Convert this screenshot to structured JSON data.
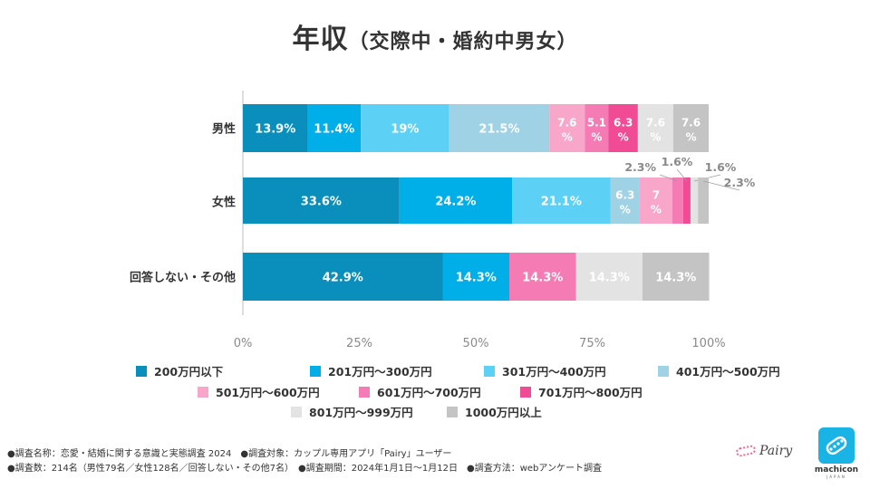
{
  "title": {
    "main": "年収",
    "sub": "（交際中・婚約中男女）"
  },
  "chart_data": {
    "type": "bar",
    "orientation": "horizontal",
    "stacked": true,
    "percent": true,
    "title": "年収（交際中・婚約中男女）",
    "categories": [
      "男性",
      "女性",
      "回答しない・その他"
    ],
    "xlim": [
      0,
      100
    ],
    "xticks": [
      "0%",
      "25%",
      "50%",
      "75%",
      "100%"
    ],
    "series": [
      {
        "name": "200万円以下",
        "color": "#0a8fbd",
        "values": [
          13.9,
          33.6,
          42.9
        ],
        "labels": [
          "13.9%",
          "33.6%",
          "42.9%"
        ]
      },
      {
        "name": "201万円～300万円",
        "color": "#00aee8",
        "values": [
          11.4,
          24.2,
          14.3
        ],
        "labels": [
          "11.4%",
          "24.2%",
          "14.3%"
        ]
      },
      {
        "name": "301万円～400万円",
        "color": "#5cd0f5",
        "values": [
          19,
          21.1,
          0
        ],
        "labels": [
          "19%",
          "21.1%",
          ""
        ]
      },
      {
        "name": "401万円～500万円",
        "color": "#9fd2e4",
        "values": [
          21.5,
          6.3,
          0
        ],
        "labels": [
          "21.5%",
          "6.3%",
          ""
        ]
      },
      {
        "name": "501万円～600万円",
        "color": "#f9a6cb",
        "values": [
          7.6,
          7,
          0
        ],
        "labels": [
          "7.6%",
          "7%",
          ""
        ]
      },
      {
        "name": "601万円～700万円",
        "color": "#f47bb3",
        "values": [
          5.1,
          2.3,
          14.3
        ],
        "labels": [
          "5.1%",
          "2.3%",
          "14.3%"
        ]
      },
      {
        "name": "701万円～800万円",
        "color": "#f24b95",
        "values": [
          6.3,
          1.6,
          0
        ],
        "labels": [
          "6.3%",
          "1.6%",
          ""
        ]
      },
      {
        "name": "801万円～999万円",
        "color": "#e3e3e3",
        "values": [
          7.6,
          1.6,
          14.3
        ],
        "labels": [
          "7.6%",
          "1.6%",
          "14.3%"
        ]
      },
      {
        "name": "1000万円以上",
        "color": "#c4c4c4",
        "values": [
          7.6,
          2.3,
          14.3
        ],
        "labels": [
          "7.6%",
          "2.3%",
          "14.3%"
        ]
      }
    ],
    "legend": [
      [
        "200万円以下",
        "201万円～300万円",
        "301万円～400万円",
        "401万円～500万円"
      ],
      [
        "501万円～600万円",
        "601万円～700万円",
        "701万円～800万円"
      ],
      [
        "801万円～999万円",
        "1000万円以上"
      ]
    ]
  },
  "footnotes": {
    "line1": "●調査名称：恋愛・結婚に関する意識と実態調査 2024　●調査対象：カップル専用アプリ「Pairy」ユーザー",
    "line2": "●調査数：214名（男性79名／女性128名／回答しない・その他7名）　●調査期間：2024年1月1日～1月12日　●調査方法：webアンケート調査"
  },
  "logos": {
    "pairy": "Pairy",
    "machicon": "machicon",
    "machicon_sub": "JAPAN"
  }
}
